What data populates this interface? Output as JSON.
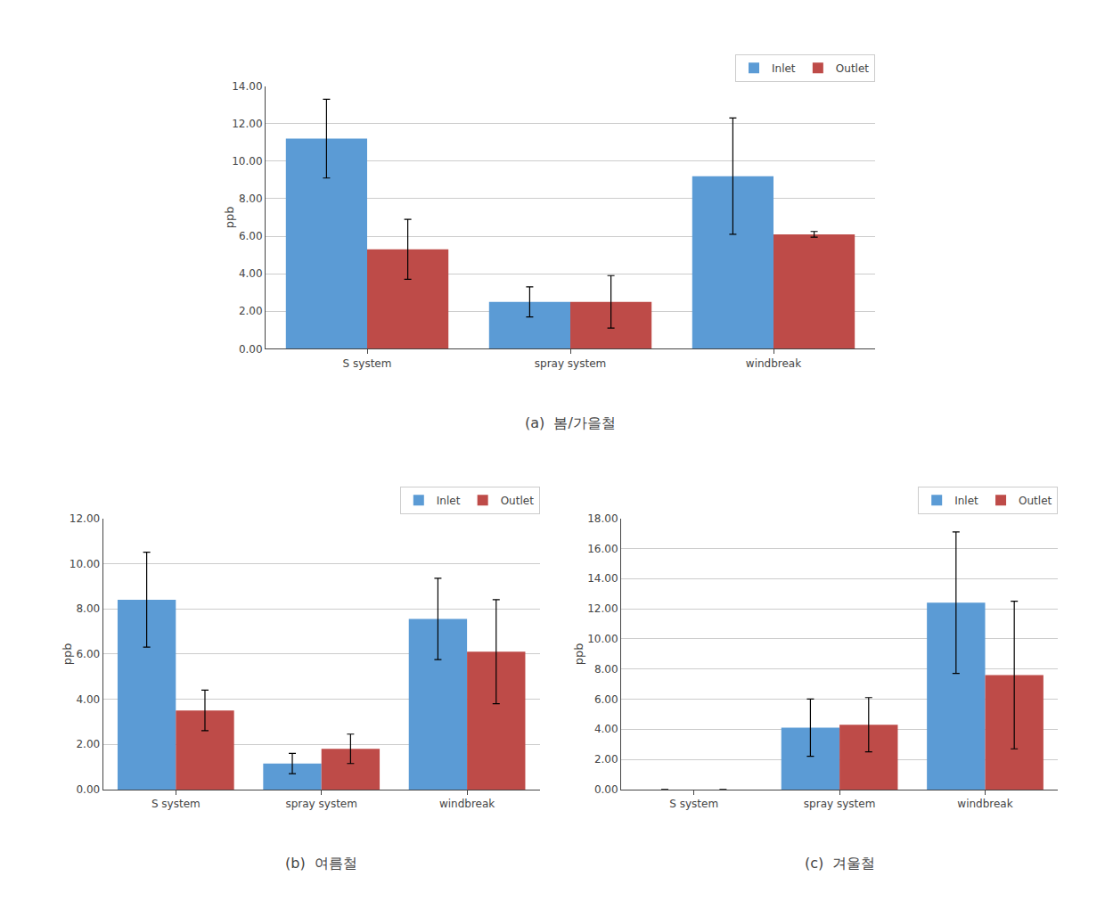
{
  "chart_data": [
    {
      "type": "bar",
      "title": "(a)  봄/가을철",
      "categories": [
        "S system",
        "spray system",
        "windbreak"
      ],
      "series": [
        {
          "name": "Inlet",
          "color": "#5B9BD5",
          "values": [
            11.2,
            2.5,
            9.2
          ],
          "errors": [
            2.1,
            0.8,
            3.1
          ]
        },
        {
          "name": "Outlet",
          "color": "#BE4B48",
          "values": [
            5.3,
            2.5,
            6.1
          ],
          "errors": [
            1.6,
            1.4,
            0.15
          ]
        }
      ],
      "ylabel": "ppb",
      "ylim": [
        0,
        14.0
      ],
      "yticks": [
        {
          "value": 0.0,
          "label": "0.00"
        },
        {
          "value": 2.0,
          "label": "2.00"
        },
        {
          "value": 4.0,
          "label": "4.00"
        },
        {
          "value": 6.0,
          "label": "6.00"
        },
        {
          "value": 8.0,
          "label": "8.00"
        },
        {
          "value": 10.0,
          "label": "10.00"
        },
        {
          "value": 12.0,
          "label": "12.00"
        },
        {
          "value": 14.0,
          "label": "14.00"
        }
      ],
      "grid": true,
      "legend": "upper right"
    },
    {
      "type": "bar",
      "title": "(b)  여름철",
      "categories": [
        "S system",
        "spray system",
        "windbreak"
      ],
      "series": [
        {
          "name": "Inlet",
          "color": "#5B9BD5",
          "values": [
            8.4,
            1.15,
            7.55
          ],
          "errors": [
            2.1,
            0.45,
            1.8
          ]
        },
        {
          "name": "Outlet",
          "color": "#BE4B48",
          "values": [
            3.5,
            1.8,
            6.1
          ],
          "errors": [
            0.9,
            0.65,
            2.3
          ]
        }
      ],
      "ylabel": "ppb",
      "ylim": [
        0,
        12.0
      ],
      "yticks": [
        {
          "value": 0.0,
          "label": "0.00"
        },
        {
          "value": 2.0,
          "label": "2.00"
        },
        {
          "value": 4.0,
          "label": "4.00"
        },
        {
          "value": 6.0,
          "label": "6.00"
        },
        {
          "value": 8.0,
          "label": "8.00"
        },
        {
          "value": 10.0,
          "label": "10.00"
        },
        {
          "value": 12.0,
          "label": "12.00"
        }
      ],
      "grid": true,
      "legend": "upper right"
    },
    {
      "type": "bar",
      "title": "(c)  겨울철",
      "categories": [
        "S system",
        "spray system",
        "windbreak"
      ],
      "series": [
        {
          "name": "Inlet",
          "color": "#5B9BD5",
          "values": [
            0.0,
            4.1,
            12.4
          ],
          "errors": [
            0.0,
            1.9,
            4.7
          ]
        },
        {
          "name": "Outlet",
          "color": "#BE4B48",
          "values": [
            0.0,
            4.3,
            7.6
          ],
          "errors": [
            0.0,
            1.8,
            4.9
          ]
        }
      ],
      "ylabel": "ppb",
      "ylim": [
        0,
        18.0
      ],
      "yticks": [
        {
          "value": 0.0,
          "label": "0.00"
        },
        {
          "value": 2.0,
          "label": "2.00"
        },
        {
          "value": 4.0,
          "label": "4.00"
        },
        {
          "value": 6.0,
          "label": "6.00"
        },
        {
          "value": 8.0,
          "label": "8.00"
        },
        {
          "value": 10.0,
          "label": "10.00"
        },
        {
          "value": 12.0,
          "label": "12.00"
        },
        {
          "value": 14.0,
          "label": "14.00"
        },
        {
          "value": 16.0,
          "label": "16.00"
        },
        {
          "value": 18.0,
          "label": "18.00"
        }
      ],
      "grid": true,
      "legend": "upper right"
    }
  ]
}
